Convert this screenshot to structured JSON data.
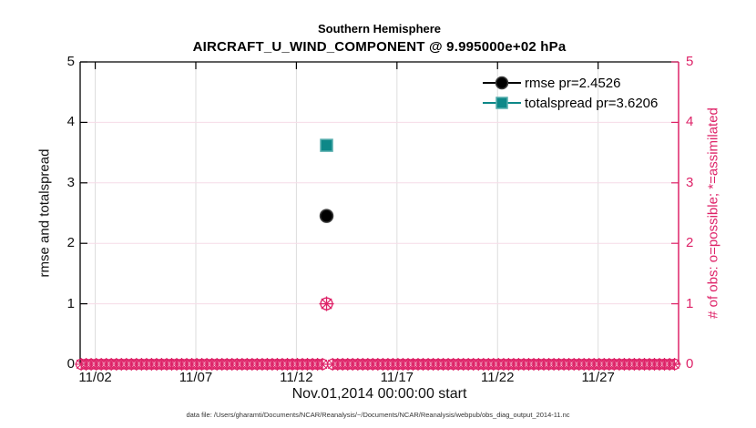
{
  "caption": "data file: /Users/gharamti/Documents/NCAR/Reanalysis/~/Documents/NCAR/Reanalysis/webpub/obs_diag_output_2014-11.nc",
  "chart_data": {
    "type": "scatter",
    "title": "Southern Hemisphere",
    "subtitle": "AIRCRAFT_U_WIND_COMPONENT @ 9.995000e+02 hPa",
    "xlabel": "Nov.01,2014 00:00:00 start",
    "ylabel_left": "rmse and totalspread",
    "ylabel_right": "# of obs: o=possible; *=assimilated",
    "xlim_days_nov2014": [
      1.25,
      31.0
    ],
    "ylim": [
      0,
      5
    ],
    "x_ticks": {
      "days": [
        2,
        7,
        12,
        17,
        22,
        27
      ],
      "labels": [
        "11/02",
        "11/07",
        "11/12",
        "11/17",
        "11/22",
        "11/27"
      ]
    },
    "y_ticks_left": [
      "0",
      "1",
      "2",
      "3",
      "4",
      "5"
    ],
    "y_ticks_right": [
      "0",
      "1",
      "2",
      "3",
      "4",
      "5"
    ],
    "grid": {
      "horizontal": true,
      "vertical": true,
      "h_color": "#F6DCE7",
      "v_color": "#DCDCDC"
    },
    "legend_position": "top-right-inside",
    "series": [
      {
        "name": "rmse pr=2.4526",
        "marker": "circle",
        "color": "#000000",
        "edge": "#3C3C3C",
        "axis": "left",
        "points": [
          {
            "x_day": 13.5,
            "y": 2.4526
          }
        ]
      },
      {
        "name": "totalspread pr=3.6206",
        "marker": "square",
        "color": "#0E8888",
        "edge": "#57ADAD",
        "axis": "left",
        "points": [
          {
            "x_day": 13.5,
            "y": 3.6206
          }
        ]
      },
      {
        "name": "# of obs possible and assimilated",
        "marker": "circle-asterisk",
        "color": "#DE2368",
        "axis": "right",
        "points": [
          {
            "x_day": 13.5,
            "y": 1
          }
        ]
      }
    ],
    "zero_obs_band": {
      "marker": "circle-asterisk",
      "color": "#DE2368",
      "y": 0,
      "start_day": 1.3,
      "end_day": 30.97,
      "step_day": 0.25,
      "skip_day": 13.5
    },
    "colors": {
      "left_axis": "#000000",
      "right_axis": "#DE2368"
    }
  }
}
